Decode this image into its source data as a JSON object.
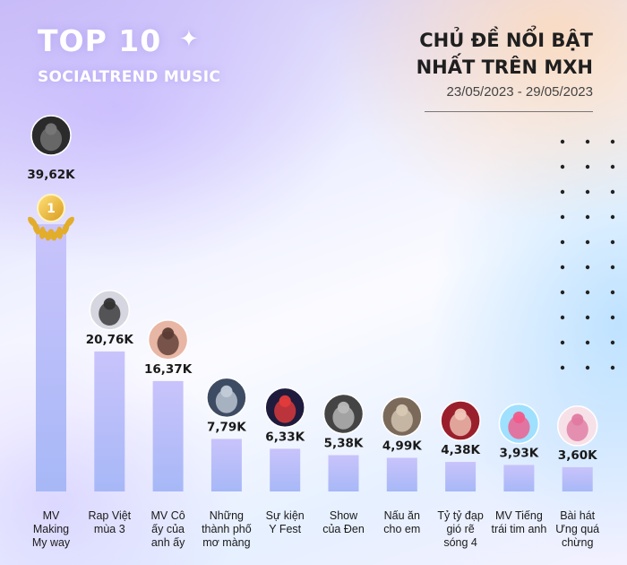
{
  "header": {
    "brand_title": "TOP 10",
    "brand_subtitle": "SOCIALTREND MUSIC",
    "sparkle_glyph": "✦",
    "title_line1": "CHỦ ĐỀ NỔI BẬT",
    "title_line2": "NHẤT TRÊN MXH",
    "date_range": "23/05/2023 - 29/05/2023"
  },
  "rank_badge": "1",
  "chart_data": {
    "type": "bar",
    "title": "CHỦ ĐỀ NỔI BẬT NHẤT TRÊN MXH",
    "categories": [
      "MV Making My way",
      "Rap Việt mùa 3",
      "MV Cô ấy của anh ấy",
      "Những thành phố mơ màng",
      "Sự kiện Y Fest",
      "Show của Đen",
      "Nấu ăn cho em",
      "Tỷ tỷ đạp gió rẽ sóng 4",
      "MV Tiếng trái tim anh",
      "Bài hát Ưng quá chừng"
    ],
    "category_lines": [
      [
        "MV",
        "Making",
        "My way"
      ],
      [
        "Rap Việt",
        "mùa 3"
      ],
      [
        "MV Cô",
        "ấy của",
        "anh ấy"
      ],
      [
        "Những",
        "thành phố",
        "mơ màng"
      ],
      [
        "Sự kiện",
        "Y Fest"
      ],
      [
        "Show",
        "của Đen"
      ],
      [
        "Nấu ăn",
        "cho em"
      ],
      [
        "Tỷ tỷ đạp",
        "gió rẽ",
        "sóng 4"
      ],
      [
        "MV Tiếng",
        "trái tim anh"
      ],
      [
        "Bài hát",
        "Ưng quá",
        "chừng"
      ]
    ],
    "values": [
      39.62,
      20.76,
      16.37,
      7.79,
      6.33,
      5.38,
      4.99,
      4.38,
      3.93,
      3.6
    ],
    "value_labels": [
      "39,62K",
      "20,76K",
      "16,37K",
      "7,79K",
      "6,33K",
      "5,38K",
      "4,99K",
      "4,38K",
      "3,93K",
      "3,60K"
    ],
    "unit": "K",
    "xlabel": "",
    "ylabel": "",
    "grid": false,
    "legend": "none",
    "thumbnail_icons": [
      "artist-photo-icon",
      "rap-viet-poster-icon",
      "singer-photo-icon",
      "band-photo-icon",
      "y-fest-poster-icon",
      "den-show-photo-icon",
      "cooking-scene-icon",
      "singer-red-dress-icon",
      "tieng-trai-tim-poster-icon",
      "ung-qua-chung-poster-icon"
    ],
    "colors": {
      "bar_top": "#c9c3fb",
      "bar_bottom": "#a7b8f7",
      "value_text": "#1a1a1a",
      "badge_gold": "#e7b632"
    }
  }
}
